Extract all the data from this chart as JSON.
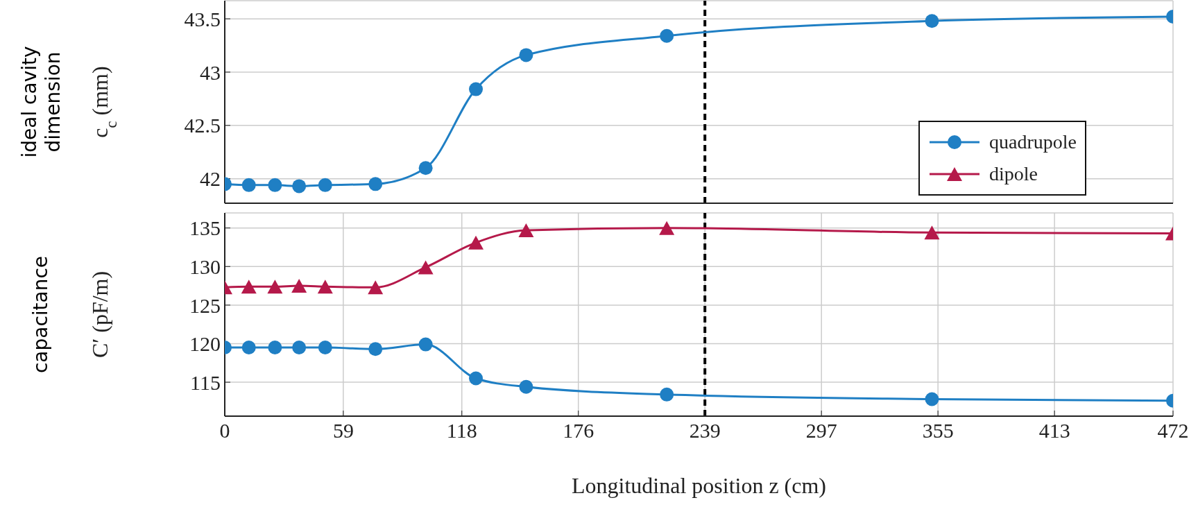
{
  "chart_data": [
    {
      "type": "line",
      "ylabel": "c$_{c}$ (mm)",
      "annotations": [
        "ideal cavity dimension"
      ],
      "x": [
        0,
        12,
        25,
        37,
        50,
        75,
        100,
        125,
        150,
        220,
        352,
        472
      ],
      "series": [
        {
          "color": "#1f7fc4",
          "marker": "circle",
          "values": [
            41.95,
            41.94,
            41.94,
            41.93,
            41.94,
            41.95,
            42.1,
            42.84,
            43.16,
            43.34,
            43.48,
            43.52
          ]
        }
      ],
      "xlim": [
        0,
        472
      ],
      "xticks": [
        0,
        59,
        118,
        176,
        239,
        297,
        355,
        413,
        472
      ],
      "ylim": [
        41.77,
        43.67
      ],
      "yticks": [
        42,
        42.5,
        43,
        43.5
      ],
      "ref_lines": [
        {
          "axis": "x",
          "value": 239,
          "color": "#000000",
          "line_style": "dashed"
        }
      ],
      "grid": true,
      "tick_labels": "y"
    },
    {
      "type": "line",
      "ylabel": "C′ (pF/m)",
      "xlabel": "Longitudinal position z (cm)",
      "annotations": [
        "capacitance"
      ],
      "x": [
        0,
        12,
        25,
        37,
        50,
        75,
        100,
        125,
        150,
        220,
        352,
        472
      ],
      "series": [
        {
          "name": "quadrupole",
          "color": "#1f7fc4",
          "marker": "circle",
          "values": [
            119.5,
            119.5,
            119.5,
            119.5,
            119.5,
            119.3,
            119.9,
            115.5,
            114.4,
            113.4,
            112.8,
            112.6
          ]
        },
        {
          "name": "dipole",
          "color": "#b5194a",
          "marker": "triangle",
          "values": [
            127.3,
            127.4,
            127.4,
            127.5,
            127.4,
            127.3,
            129.9,
            133.1,
            134.7,
            135.0,
            134.4,
            134.3
          ]
        }
      ],
      "xlim": [
        0,
        472
      ],
      "xticks": [
        0,
        59,
        118,
        176,
        239,
        297,
        355,
        413,
        472
      ],
      "ylim": [
        110.6,
        136.95
      ],
      "yticks": [
        115,
        120,
        125,
        130,
        135
      ],
      "ref_lines": [
        {
          "axis": "x",
          "value": 239,
          "color": "#000000",
          "line_style": "dashed"
        }
      ],
      "grid": true,
      "legend": "top right"
    }
  ]
}
